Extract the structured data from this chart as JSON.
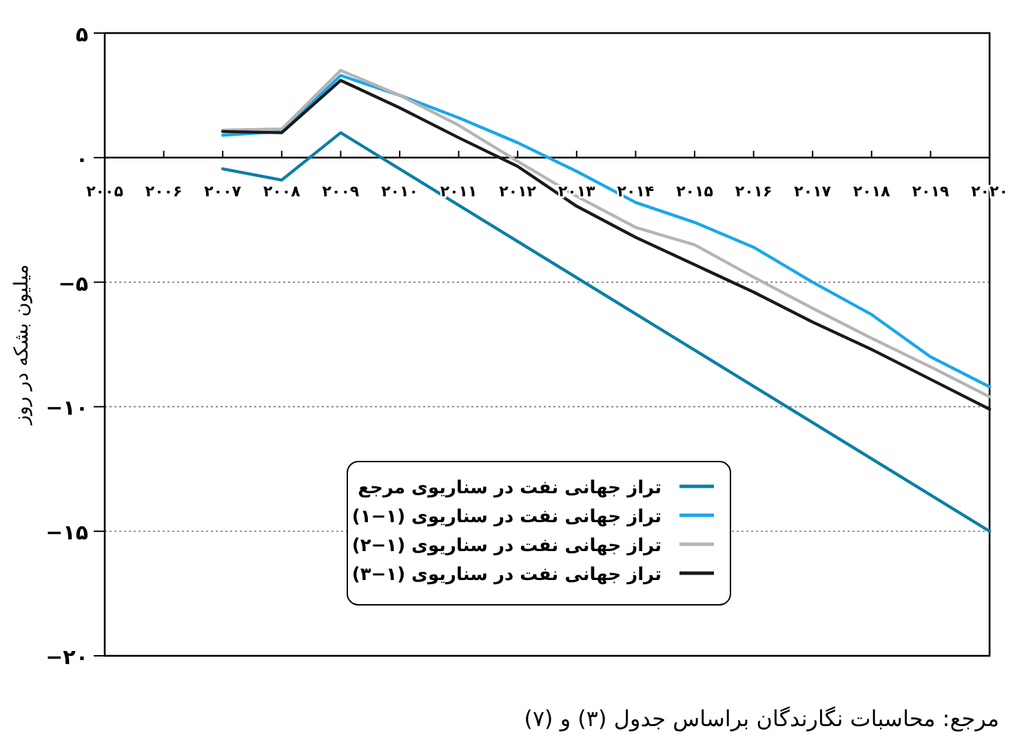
{
  "chart_data": {
    "type": "line",
    "ylabel": "میلیون بشکه در روز",
    "annotations": [
      "مرجع: محاسبات نگارندگان براساس جدول (۳) و (۷)"
    ],
    "xlim": [
      2005,
      2020
    ],
    "xticks": [
      {
        "value": 2005,
        "label": "۲۰۰۵"
      },
      {
        "value": 2006,
        "label": "۲۰۰۶"
      },
      {
        "value": 2007,
        "label": "۲۰۰۷"
      },
      {
        "value": 2008,
        "label": "۲۰۰۸"
      },
      {
        "value": 2009,
        "label": "۲۰۰۹"
      },
      {
        "value": 2010,
        "label": "۲۰۱۰"
      },
      {
        "value": 2011,
        "label": "۲۰۱۱"
      },
      {
        "value": 2012,
        "label": "۲۰۱۲"
      },
      {
        "value": 2013,
        "label": "۲۰۱۳"
      },
      {
        "value": 2014,
        "label": "۲۰۱۴"
      },
      {
        "value": 2015,
        "label": "۲۰۱۵"
      },
      {
        "value": 2016,
        "label": "۲۰۱۶"
      },
      {
        "value": 2017,
        "label": "۲۰۱۷"
      },
      {
        "value": 2018,
        "label": "۲۰۱۸"
      },
      {
        "value": 2019,
        "label": "۲۰۱۹"
      },
      {
        "value": 2020,
        "label": "۲۰۲۰"
      }
    ],
    "ylim": [
      -20,
      5
    ],
    "yticks": [
      {
        "value": 5,
        "label": "۵"
      },
      {
        "value": 0,
        "label": "۰"
      },
      {
        "value": -5,
        "label": "−۵"
      },
      {
        "value": -10,
        "label": "−۱۰"
      },
      {
        "value": -15,
        "label": "−۱۵"
      },
      {
        "value": -20,
        "label": "−۲۰"
      }
    ],
    "grid": "y",
    "legend": "bottom",
    "series": [
      {
        "name": "تراز جهانی نفت در سناریوی مرجع",
        "color": "#0b7fa6",
        "x": [
          2007,
          2008,
          2009,
          2020
        ],
        "values": [
          -0.45,
          -0.9,
          1.0,
          -15.0
        ]
      },
      {
        "name": "تراز جهانی نفت در سناریوی (۱−۱)",
        "color": "#1aa7e8",
        "x": [
          2007,
          2008,
          2009,
          2010,
          2011,
          2012,
          2013,
          2014,
          2015,
          2016,
          2017,
          2018,
          2019,
          2020
        ],
        "values": [
          0.9,
          1.05,
          3.3,
          2.5,
          1.6,
          0.6,
          -0.55,
          -1.8,
          -2.6,
          -3.6,
          -5.0,
          -6.3,
          -8.0,
          -9.2
        ]
      },
      {
        "name": "تراز جهانی نفت در سناریوی (۱−۲)",
        "color": "#b5b5b5",
        "x": [
          2007,
          2008,
          2009,
          2010,
          2011,
          2012,
          2013,
          2014,
          2015,
          2016,
          2017,
          2018,
          2019,
          2020
        ],
        "values": [
          1.1,
          1.15,
          3.5,
          2.5,
          1.3,
          -0.15,
          -1.55,
          -2.8,
          -3.5,
          -4.8,
          -6.05,
          -7.25,
          -8.4,
          -9.6
        ]
      },
      {
        "name": "تراز جهانی نفت در سناریوی (۱−۳)",
        "color": "#1a1a1a",
        "x": [
          2007,
          2008,
          2009,
          2010,
          2011,
          2012,
          2013,
          2014,
          2015,
          2016,
          2017,
          2018,
          2019,
          2020
        ],
        "values": [
          1.05,
          1.0,
          3.1,
          2.0,
          0.8,
          -0.35,
          -1.95,
          -3.2,
          -4.3,
          -5.4,
          -6.6,
          -7.7,
          -8.9,
          -10.1
        ]
      }
    ]
  }
}
